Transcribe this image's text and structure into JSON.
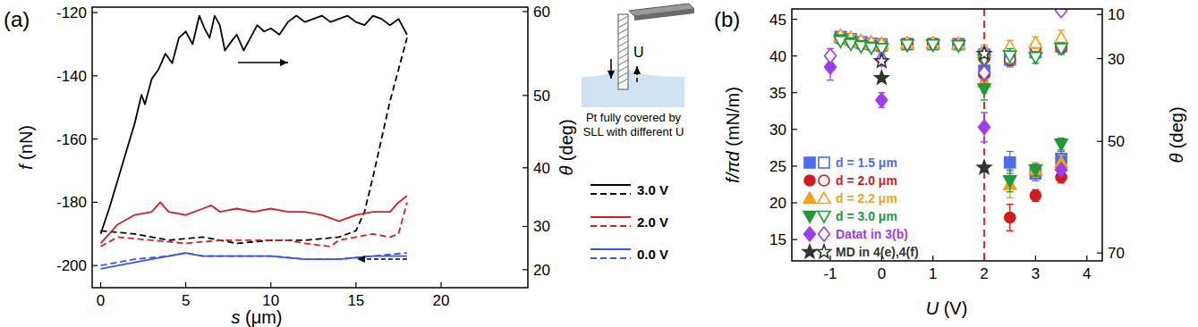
{
  "chart_data": [
    {
      "label": "(a)",
      "type": "line",
      "x_label": "s (μm)",
      "y_label": "f (nN)",
      "y2_label": "θ (deg)",
      "xlim": [
        -0.5,
        25.1
      ],
      "xticks": [
        0,
        5,
        10,
        15,
        20
      ],
      "ylim": [
        -207,
        -118.3
      ],
      "yticks": [
        -200,
        -180,
        -160,
        -140,
        -120
      ],
      "y2lim": [
        14.0,
        60.5
      ],
      "y2ticks": [
        20,
        30,
        40,
        50,
        60
      ],
      "legend": "right",
      "annotations": [
        "U",
        "Pt fully covered by",
        "SLL with different U"
      ],
      "series": [
        {
          "name": "3.0 V",
          "color": "#000000",
          "line_style": "solid",
          "x": [
            0,
            0.5,
            1,
            1.5,
            2,
            2.4,
            2.6,
            3,
            3.4,
            3.8,
            4.2,
            4.6,
            5,
            5.4,
            5.8,
            6.1,
            6.4,
            6.7,
            7,
            7.3,
            7.7,
            8,
            8.4,
            8.8,
            9.2,
            9.6,
            10,
            10.5,
            11,
            11.5,
            12,
            12.5,
            13,
            13.5,
            14,
            14.5,
            15,
            15.5,
            16,
            16.5,
            17,
            17.5,
            18
          ],
          "values": [
            -190,
            -182,
            -173,
            -164,
            -155,
            -146,
            -149,
            -141,
            -138,
            -133,
            -136,
            -128,
            -126,
            -130,
            -121,
            -125,
            -128,
            -121,
            -124,
            -132,
            -129,
            -127,
            -132,
            -128,
            -124,
            -126,
            -125,
            -127,
            -123,
            -121,
            -123,
            -122,
            -121,
            -123,
            -122,
            -121,
            -123,
            -124,
            -121,
            -122,
            -124,
            -122,
            -127
          ]
        },
        {
          "name": "3.0 V",
          "color": "#000000",
          "line_style": "dashed",
          "x": [
            0,
            2,
            4,
            6,
            8,
            10,
            12,
            14,
            15,
            15.5,
            16,
            16.5,
            17,
            17.5,
            18
          ],
          "values": [
            -189,
            -190,
            -192,
            -191,
            -193,
            -192,
            -192,
            -191,
            -189,
            -183,
            -172,
            -160,
            -148,
            -138,
            -128
          ]
        },
        {
          "name": "2.0 V",
          "color": "#d21f26",
          "line_style": "solid",
          "x": [
            0,
            1,
            2,
            3,
            3.5,
            4,
            5,
            6,
            6.5,
            7,
            8,
            9,
            10,
            11,
            12,
            13,
            14,
            15,
            16,
            17,
            17.5,
            18
          ],
          "values": [
            -193,
            -187,
            -184,
            -183,
            -180,
            -183,
            -184,
            -182,
            -181,
            -183,
            -182,
            -183,
            -182,
            -183,
            -183,
            -184,
            -186,
            -184,
            -183,
            -183,
            -180,
            -178
          ]
        },
        {
          "name": "2.0 V",
          "color": "#d21f26",
          "line_style": "dashed",
          "x": [
            0,
            1,
            3,
            5,
            7,
            9,
            11,
            12,
            13.5,
            14,
            15,
            16,
            17,
            17.5,
            18
          ],
          "values": [
            -194,
            -191,
            -192,
            -193,
            -192,
            -192,
            -192,
            -193,
            -194,
            -192,
            -191,
            -190,
            -191,
            -190,
            -180
          ]
        },
        {
          "name": "0.0 V",
          "color": "#3a56e6",
          "line_style": "solid",
          "x": [
            0,
            2,
            4,
            5,
            6,
            8,
            10,
            12,
            14,
            16,
            18
          ],
          "values": [
            -201,
            -199,
            -197,
            -196,
            -197,
            -197,
            -197,
            -198,
            -198,
            -197,
            -197
          ]
        },
        {
          "name": "0.0 V",
          "color": "#3a56e6",
          "line_style": "dashed",
          "x": [
            0,
            2,
            4,
            5,
            6,
            8,
            10,
            12,
            14,
            16,
            18
          ],
          "values": [
            -200,
            -198,
            -197,
            -196,
            -197,
            -197,
            -197,
            -198,
            -198,
            -197,
            -196
          ]
        }
      ]
    },
    {
      "label": "(b)",
      "type": "scatter",
      "x_label": "U (V)",
      "y_label": "f/πd (mN/m)",
      "y2_label": "θ (deg)",
      "xlim": [
        -1.75,
        4.3
      ],
      "xticks": [
        -1,
        0,
        1,
        2,
        3,
        4
      ],
      "ylim": [
        12.1,
        46.4
      ],
      "yticks": [
        15,
        20,
        25,
        30,
        35,
        40,
        45
      ],
      "y2lim": [
        71.3,
        0
      ],
      "y2ticks": [
        10,
        30,
        50,
        70
      ],
      "legend": "lower left",
      "vline": {
        "x": 2,
        "color": "#e8262b",
        "line_style": "dashed"
      },
      "series": [
        {
          "name": "d = 1.5 μm",
          "color": "#4d6bf0",
          "marker": "square",
          "x": [
            -0.8,
            -0.6,
            -0.4,
            -0.2,
            0,
            0.5,
            1,
            1.5,
            2,
            2.5,
            3,
            3.5
          ],
          "values": [
            42.5,
            42.2,
            41.8,
            41.6,
            41.4,
            41.6,
            41.6,
            41.6,
            38.0,
            25.5,
            24.0,
            26.0
          ],
          "errors": [
            0.4,
            0.4,
            0.4,
            0.4,
            0.4,
            0.3,
            0.3,
            0.3,
            1.5,
            1.5,
            1.0,
            1.0
          ]
        },
        {
          "name": "d = 1.5 μm",
          "color": "#4d6bf0",
          "marker": "square-open",
          "x": [
            -0.8,
            -0.6,
            -0.4,
            -0.2,
            0,
            0.5,
            1,
            1.5,
            2,
            2.5,
            3,
            3.5
          ],
          "values": [
            42.6,
            42.3,
            41.9,
            41.7,
            41.6,
            41.6,
            41.6,
            41.6,
            40.2,
            39.5,
            40.5,
            41.3
          ],
          "errors": [
            0.4,
            0.4,
            0.4,
            0.4,
            0.4,
            0.3,
            0.3,
            0.3,
            1.0,
            1.0,
            0.8,
            0.8
          ]
        },
        {
          "name": "d = 2.0 μm",
          "color": "#d7191c",
          "marker": "circle",
          "x": [
            -0.8,
            -0.6,
            -0.4,
            -0.2,
            0,
            0.5,
            1,
            1.5,
            2,
            2.5,
            3,
            3.5
          ],
          "values": [
            42.4,
            42.0,
            41.6,
            41.5,
            41.3,
            41.6,
            41.6,
            41.5,
            37.5,
            18.0,
            21.0,
            23.5
          ],
          "errors": [
            0.4,
            0.4,
            0.4,
            0.4,
            0.4,
            0.3,
            0.3,
            0.3,
            1.5,
            1.8,
            0.8,
            0.8
          ]
        },
        {
          "name": "d = 2.0 μm",
          "color": "#d7191c",
          "marker": "circle-open",
          "x": [
            -0.8,
            -0.6,
            -0.4,
            -0.2,
            0,
            0.5,
            1,
            1.5,
            2,
            2.5,
            3,
            3.5
          ],
          "values": [
            42.6,
            42.2,
            41.8,
            41.6,
            41.5,
            41.7,
            41.7,
            41.6,
            39.7,
            39.5,
            41.2,
            41.2
          ],
          "errors": [
            0.4,
            0.4,
            0.4,
            0.4,
            0.4,
            0.3,
            0.3,
            0.3,
            1.0,
            0.8,
            0.8,
            0.8
          ]
        },
        {
          "name": "d = 2.2 μm",
          "color": "#f5a01a",
          "marker": "triangle",
          "x": [
            -0.8,
            -0.6,
            -0.4,
            -0.2,
            0,
            0.5,
            1,
            1.5,
            2,
            2.5,
            3,
            3.5
          ],
          "values": [
            42.6,
            42.3,
            41.9,
            41.7,
            41.5,
            41.7,
            41.7,
            41.6,
            36.5,
            22.5,
            24.5,
            25.5
          ],
          "errors": [
            0.4,
            0.4,
            0.4,
            0.4,
            0.4,
            0.3,
            0.3,
            0.3,
            1.5,
            1.8,
            1.0,
            1.0
          ]
        },
        {
          "name": "d = 2.2 μm",
          "color": "#f5a01a",
          "marker": "triangle-open",
          "x": [
            -0.8,
            -0.6,
            -0.4,
            -0.2,
            0,
            0.5,
            1,
            1.5,
            2,
            2.5,
            3,
            3.5
          ],
          "values": [
            42.8,
            42.5,
            42.1,
            41.9,
            41.7,
            41.8,
            41.8,
            41.7,
            40.5,
            41.3,
            41.8,
            42.5
          ],
          "errors": [
            0.4,
            0.4,
            0.4,
            0.4,
            0.4,
            0.3,
            0.3,
            0.3,
            1.0,
            0.8,
            0.8,
            1.0
          ]
        },
        {
          "name": "d = 3.0 μm",
          "color": "#1d9a3a",
          "marker": "triangle-down",
          "x": [
            -0.8,
            -0.6,
            -0.4,
            -0.2,
            0,
            0.5,
            1,
            1.5,
            2,
            2.5,
            3,
            3.5
          ],
          "values": [
            42.2,
            41.8,
            41.4,
            41.2,
            41.0,
            41.5,
            41.5,
            41.4,
            35.5,
            23.0,
            24.5,
            28.0
          ],
          "errors": [
            0.4,
            0.4,
            0.4,
            0.4,
            0.4,
            0.3,
            0.3,
            0.3,
            1.5,
            1.5,
            0.8,
            0.8
          ]
        },
        {
          "name": "d = 3.0 μm",
          "color": "#1d9a3a",
          "marker": "triangle-down-open",
          "x": [
            -0.8,
            -0.6,
            -0.4,
            -0.2,
            0,
            0.5,
            1,
            1.5,
            2,
            2.5,
            3,
            3.5
          ],
          "values": [
            42.0,
            41.6,
            41.3,
            41.1,
            41.0,
            41.5,
            41.5,
            41.4,
            39.5,
            40.0,
            39.8,
            41.0
          ],
          "errors": [
            0.4,
            0.4,
            0.4,
            0.4,
            0.4,
            0.3,
            0.3,
            0.3,
            1.0,
            1.0,
            0.8,
            0.8
          ]
        },
        {
          "name": "Datat in 3(b)",
          "color": "#a03cf0",
          "marker": "diamond",
          "x": [
            -1,
            0,
            2,
            3.5
          ],
          "values": [
            38.5,
            34.0,
            30.3,
            24.5
          ],
          "errors": [
            1.8,
            1.0,
            2.0,
            0.5
          ]
        },
        {
          "name": "Datat in 3(b)",
          "color": "#a03cf0",
          "marker": "diamond-open",
          "x": [
            -1,
            0,
            2,
            3.5
          ],
          "values": [
            40.0,
            39.5,
            37.7,
            46.2
          ],
          "errors": [
            1.0,
            0.8,
            1.0,
            0.5
          ]
        },
        {
          "name": "MD in 4(e),4(f)",
          "color": "#333333",
          "marker": "star",
          "x": [
            0,
            2
          ],
          "values": [
            37.0,
            24.8
          ]
        },
        {
          "name": "MD in 4(e),4(f)",
          "color": "#333333",
          "marker": "star-open",
          "x": [
            0,
            2
          ],
          "values": [
            39.3,
            40.3
          ]
        }
      ]
    }
  ]
}
